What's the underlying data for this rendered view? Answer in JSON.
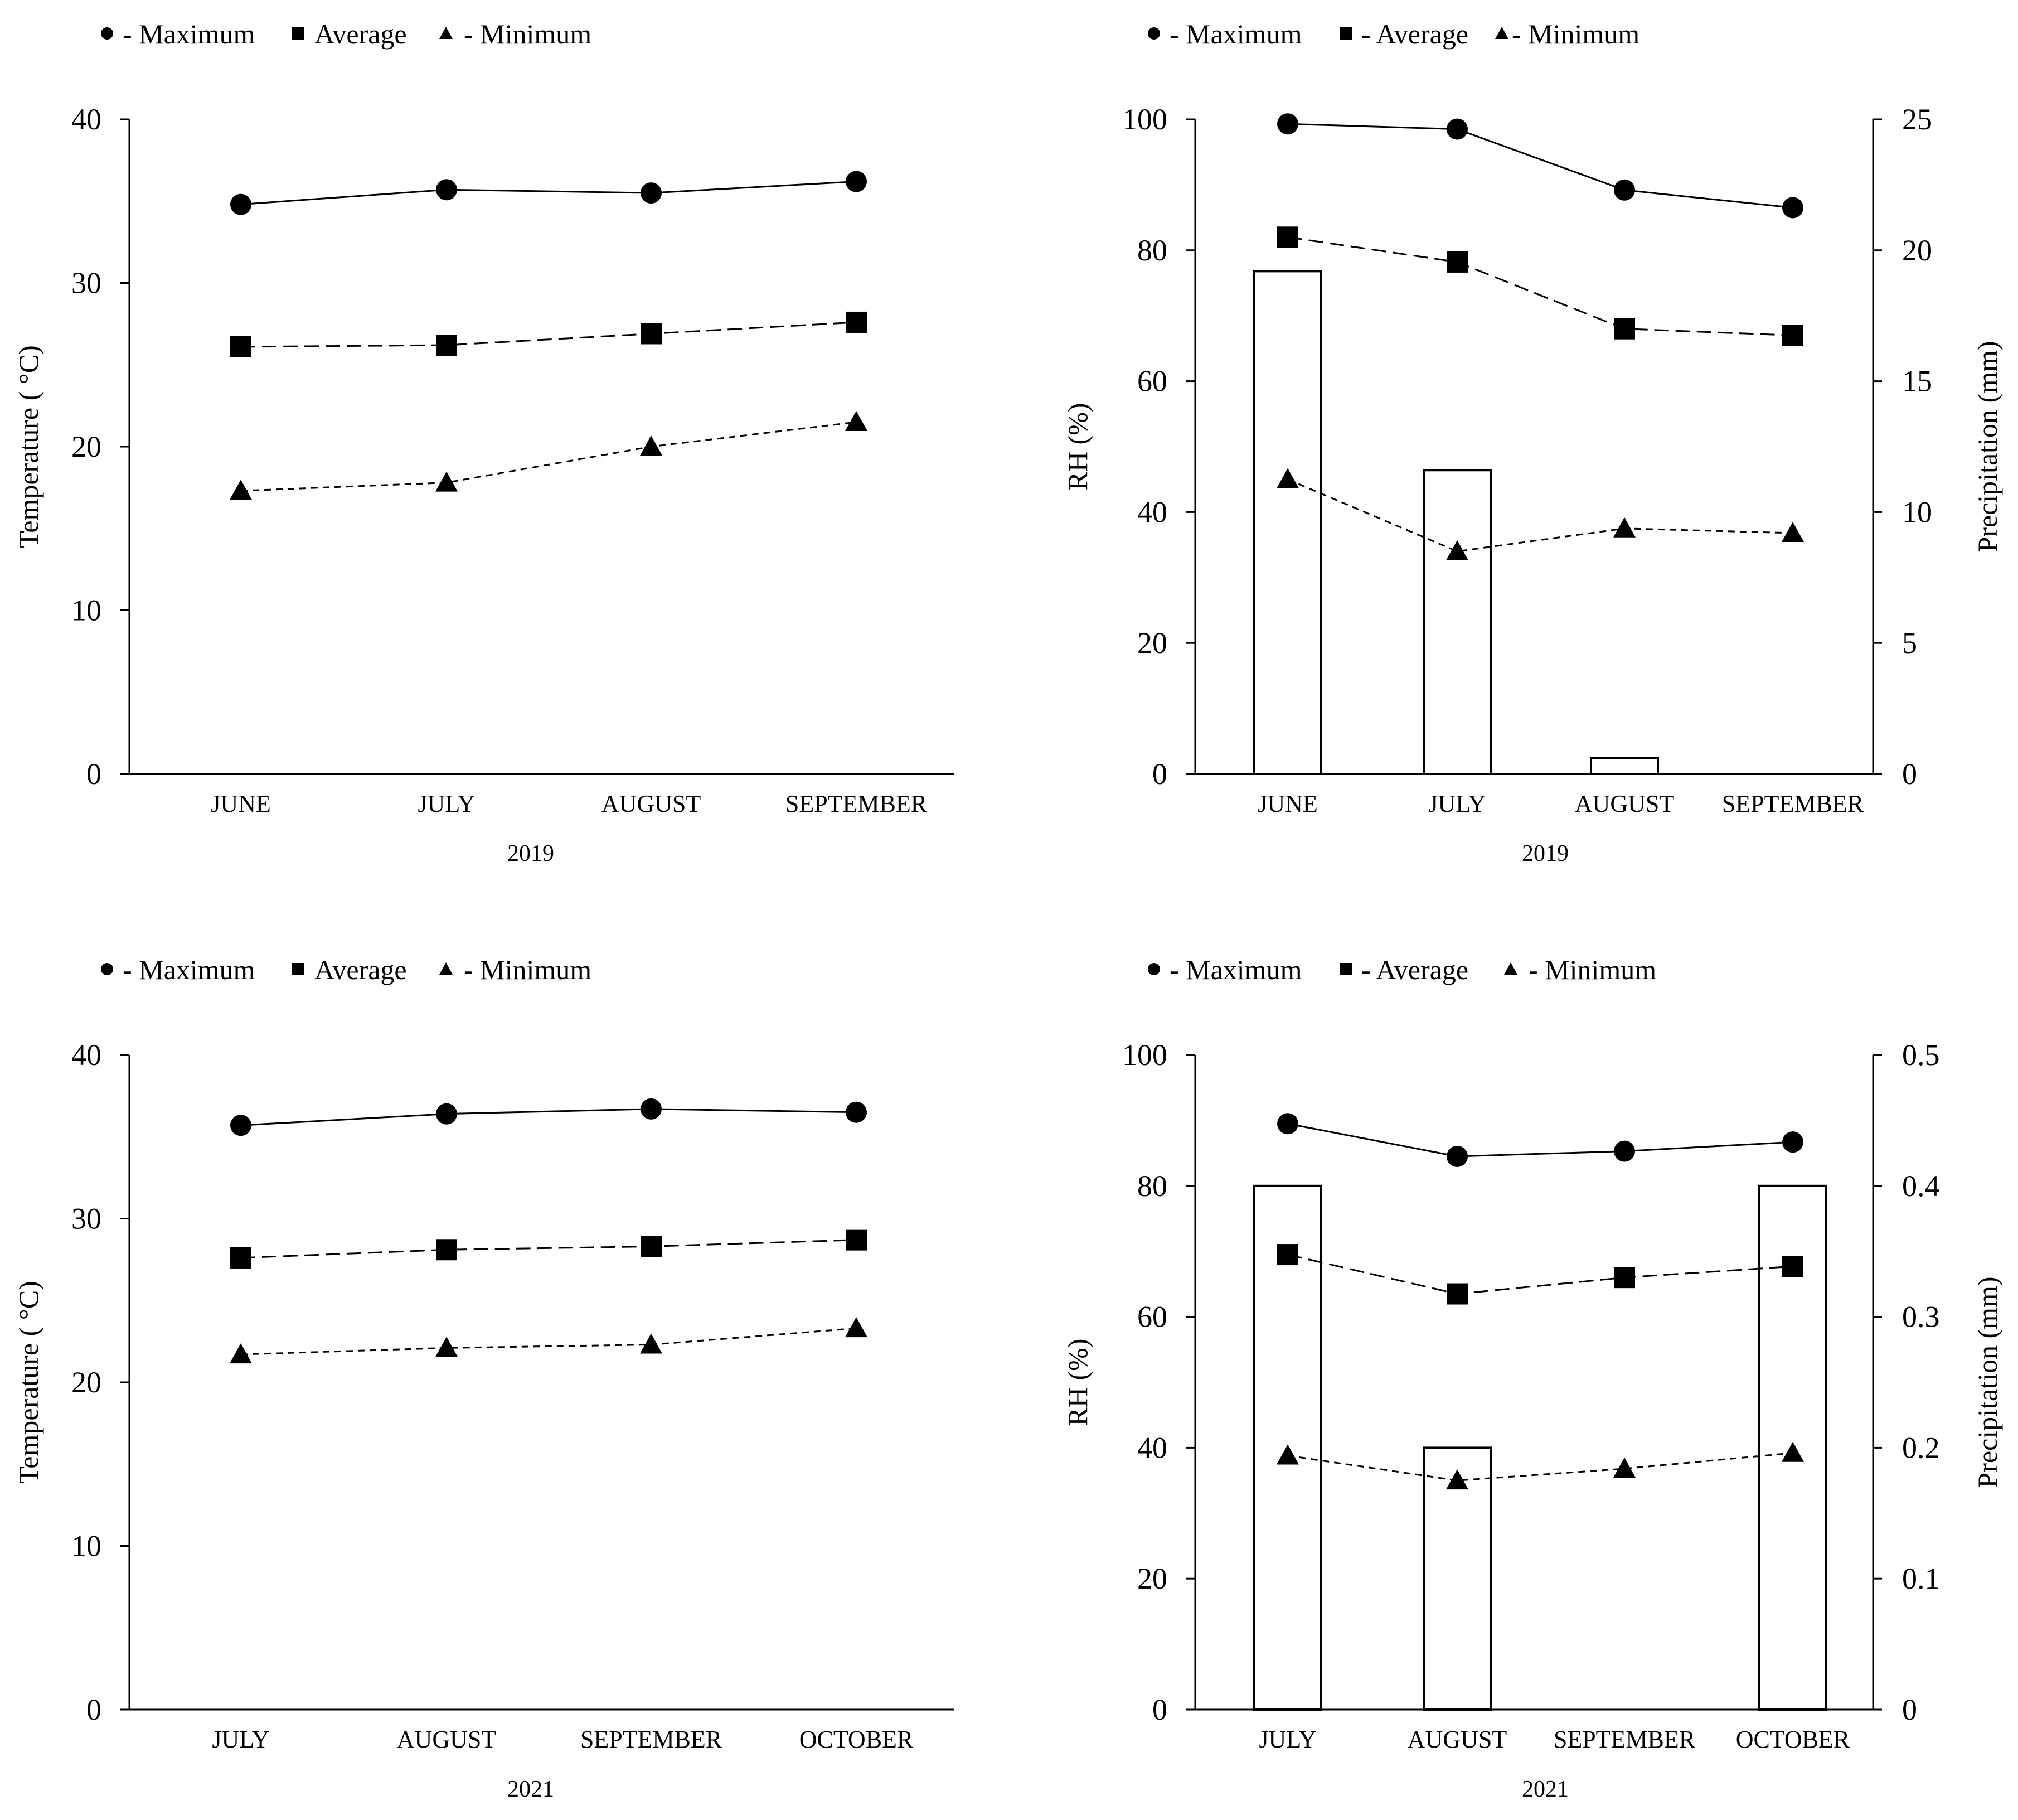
{
  "chart_data": [
    {
      "type": "line",
      "panel": "top-left",
      "legend": [
        "- Maximum",
        "Average",
        "- Minimum"
      ],
      "categories": [
        "JUNE",
        "JULY",
        "AUGUST",
        "SEPTEMBER"
      ],
      "xlabel": "2019",
      "ylabel": "Temperature ( °C)",
      "ylim": [
        0,
        40
      ],
      "yticks": [
        0,
        10,
        20,
        30,
        40
      ],
      "series": [
        {
          "name": "Maximum",
          "marker": "circle",
          "line": "solid",
          "values": [
            34.8,
            35.7,
            35.5,
            36.2
          ]
        },
        {
          "name": "Average",
          "marker": "square",
          "line": "dashed",
          "values": [
            26.1,
            26.2,
            26.9,
            27.6
          ]
        },
        {
          "name": "Minimum",
          "marker": "triangle",
          "line": "dotted",
          "values": [
            17.3,
            17.8,
            20.0,
            21.5
          ]
        }
      ]
    },
    {
      "type": "line",
      "panel": "top-right",
      "legend": [
        "- Maximum",
        "- Average",
        "- Minimum"
      ],
      "categories": [
        "JUNE",
        "JULY",
        "AUGUST",
        "SEPTEMBER"
      ],
      "xlabel": "2019",
      "ylabel": "RH (%)",
      "ylim": [
        0,
        100
      ],
      "yticks": [
        0,
        20,
        40,
        60,
        80,
        100
      ],
      "y2label": "Precipitation (mm)",
      "y2lim": [
        0,
        25
      ],
      "y2ticks": [
        "0",
        "5",
        "10",
        "15",
        "20",
        "25"
      ],
      "bars": {
        "name": "Precipitation",
        "values": [
          19.2,
          11.6,
          0.6,
          0
        ]
      },
      "series": [
        {
          "name": "Maximum",
          "marker": "circle",
          "line": "solid",
          "values": [
            99.3,
            98.5,
            89.2,
            86.5
          ]
        },
        {
          "name": "Average",
          "marker": "square",
          "line": "dashed",
          "values": [
            82.0,
            78.2,
            68.0,
            67.0
          ]
        },
        {
          "name": "Minimum",
          "marker": "triangle",
          "line": "dotted",
          "values": [
            45.0,
            34.0,
            37.5,
            36.8
          ]
        }
      ]
    },
    {
      "type": "line",
      "panel": "bottom-left",
      "legend": [
        "- Maximum",
        "Average",
        "- Minimum"
      ],
      "categories": [
        "JULY",
        "AUGUST",
        "SEPTEMBER",
        "OCTOBER"
      ],
      "xlabel": "2021",
      "ylabel": "Temperature ( °C)",
      "ylim": [
        0,
        40
      ],
      "yticks": [
        0,
        10,
        20,
        30,
        40
      ],
      "series": [
        {
          "name": "Maximum",
          "marker": "circle",
          "line": "solid",
          "values": [
            35.7,
            36.4,
            36.7,
            36.5
          ]
        },
        {
          "name": "Average",
          "marker": "square",
          "line": "dashed",
          "values": [
            27.6,
            28.1,
            28.3,
            28.7
          ]
        },
        {
          "name": "Minimum",
          "marker": "triangle",
          "line": "dotted",
          "values": [
            21.7,
            22.1,
            22.3,
            23.3
          ]
        }
      ]
    },
    {
      "type": "line",
      "panel": "bottom-right",
      "legend": [
        "- Maximum",
        "- Average",
        "- Minimum"
      ],
      "categories": [
        "JULY",
        "AUGUST",
        "SEPTEMBER",
        "OCTOBER"
      ],
      "xlabel": "2021",
      "ylabel": "RH (%)",
      "ylim": [
        0,
        100
      ],
      "yticks": [
        0,
        20,
        40,
        60,
        80,
        100
      ],
      "y2label": "Precipitation (mm)",
      "y2lim": [
        0,
        0.5
      ],
      "y2ticks": [
        "0",
        "0.1",
        "0.2",
        "0.3",
        "0.4",
        "0.5"
      ],
      "bars": {
        "name": "Precipitation",
        "values": [
          0.4,
          0.2,
          0,
          0.4
        ]
      },
      "series": [
        {
          "name": "Maximum",
          "marker": "circle",
          "line": "solid",
          "values": [
            89.5,
            84.5,
            85.3,
            86.7
          ]
        },
        {
          "name": "Average",
          "marker": "square",
          "line": "dashed",
          "values": [
            69.5,
            63.5,
            66.0,
            67.7
          ]
        },
        {
          "name": "Minimum",
          "marker": "triangle",
          "line": "dotted",
          "values": [
            38.8,
            35.0,
            36.8,
            39.2
          ]
        }
      ]
    }
  ]
}
